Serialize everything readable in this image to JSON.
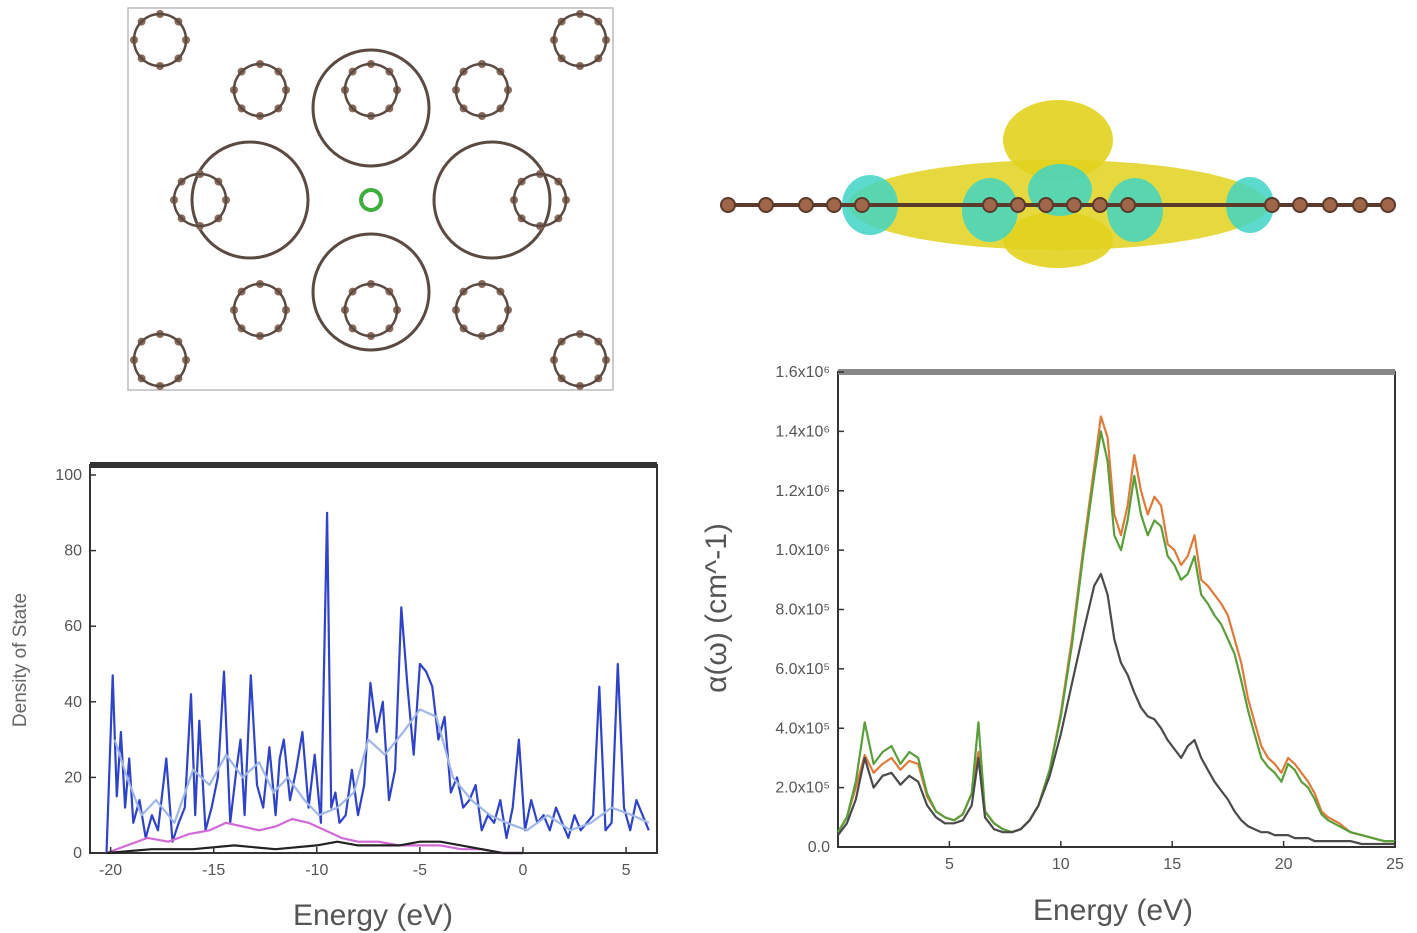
{
  "colors": {
    "bond": "#5a4a42",
    "atom": "#8a6a5a",
    "dopant": "#3fae3f",
    "charge_yellow": "#e2d21e",
    "charge_cyan": "#3fd3c4",
    "dos_blue": "#2f43c9",
    "dos_light": "#9fb7e8",
    "dos_magenta": "#d06ad6",
    "abs_orange": "#e07a3a",
    "abs_green": "#5a9e3a",
    "abs_gray": "#4a4a4a"
  },
  "icons": [
    "atomic-lattice-structure",
    "charge-density-side-view"
  ],
  "chart_data": [
    {
      "type": "line",
      "xlabel": "Energy (eV)",
      "ylabel": "Density of State",
      "xlim": [
        -21,
        6.5
      ],
      "ylim": [
        0,
        100
      ],
      "x_ticks": [
        -20,
        -15,
        -10,
        -5,
        0,
        5
      ],
      "x_tick_labels": [
        "-20",
        "-15",
        "-10",
        "-5",
        "0",
        "5"
      ],
      "y_ticks": [
        0,
        20,
        40,
        60,
        80,
        100
      ],
      "y_tick_labels": [
        "0",
        "20",
        "40",
        "60",
        "80",
        "100"
      ],
      "series": [
        {
          "color": "#2f43c9",
          "x": [
            -20.2,
            -19.9,
            -19.7,
            -19.5,
            -19.3,
            -19.1,
            -18.9,
            -18.6,
            -18.3,
            -18.0,
            -17.7,
            -17.3,
            -17.0,
            -16.7,
            -16.4,
            -16.1,
            -15.9,
            -15.7,
            -15.4,
            -15.1,
            -14.8,
            -14.5,
            -14.2,
            -13.9,
            -13.7,
            -13.5,
            -13.2,
            -12.9,
            -12.6,
            -12.3,
            -12.0,
            -11.8,
            -11.6,
            -11.3,
            -11.0,
            -10.7,
            -10.4,
            -10.1,
            -9.8,
            -9.5,
            -9.3,
            -9.1,
            -8.9,
            -8.6,
            -8.3,
            -8.0,
            -7.7,
            -7.4,
            -7.1,
            -6.8,
            -6.5,
            -6.2,
            -5.9,
            -5.6,
            -5.3,
            -5.0,
            -4.7,
            -4.4,
            -4.1,
            -3.8,
            -3.5,
            -3.2,
            -2.9,
            -2.6,
            -2.3,
            -2.0,
            -1.7,
            -1.4,
            -1.1,
            -0.8,
            -0.5,
            -0.2,
            0.1,
            0.4,
            0.7,
            1.0,
            1.3,
            1.6,
            1.9,
            2.2,
            2.5,
            2.8,
            3.1,
            3.4,
            3.7,
            4.0,
            4.3,
            4.6,
            4.9,
            5.2,
            5.5,
            5.8,
            6.1
          ],
          "y": [
            0,
            47,
            15,
            32,
            12,
            25,
            8,
            14,
            4,
            10,
            6,
            25,
            3,
            8,
            12,
            42,
            10,
            35,
            6,
            12,
            20,
            48,
            8,
            22,
            30,
            10,
            47,
            18,
            12,
            28,
            10,
            25,
            30,
            14,
            22,
            32,
            12,
            26,
            8,
            90,
            12,
            16,
            8,
            10,
            22,
            10,
            18,
            45,
            32,
            40,
            14,
            22,
            65,
            44,
            26,
            50,
            48,
            44,
            30,
            36,
            16,
            20,
            12,
            14,
            18,
            6,
            10,
            8,
            14,
            4,
            12,
            30,
            6,
            14,
            8,
            10,
            6,
            12,
            8,
            4,
            10,
            6,
            8,
            10,
            44,
            6,
            8,
            50,
            12,
            6,
            14,
            10,
            6
          ]
        },
        {
          "color": "#9fb7e8",
          "x": [
            -19.8,
            -19.2,
            -18.5,
            -17.8,
            -16.9,
            -16.0,
            -15.2,
            -14.4,
            -13.6,
            -12.8,
            -12.1,
            -11.4,
            -10.6,
            -9.9,
            -9.0,
            -8.2,
            -7.5,
            -6.7,
            -5.8,
            -5.0,
            -4.2,
            -3.4,
            -2.5,
            -1.6,
            -0.8,
            0.2,
            1.2,
            2.3,
            3.3,
            4.3,
            5.3,
            6.1
          ],
          "y": [
            30,
            20,
            10,
            14,
            8,
            22,
            18,
            26,
            20,
            24,
            16,
            20,
            14,
            10,
            12,
            16,
            30,
            26,
            32,
            38,
            36,
            20,
            14,
            10,
            8,
            6,
            10,
            6,
            8,
            12,
            10,
            8
          ]
        },
        {
          "color": "#d06ad6",
          "x": [
            -20.2,
            -19.2,
            -18.2,
            -17.2,
            -16.2,
            -15.2,
            -14.4,
            -13.6,
            -12.8,
            -12.0,
            -11.2,
            -10.4,
            -9.6,
            -8.8,
            -8.0,
            -7.0,
            -6.0,
            -5.0,
            -4.0,
            -3.0,
            -2.0,
            -1.0,
            0.0
          ],
          "y": [
            0,
            2,
            4,
            3,
            5,
            6,
            8,
            7,
            6,
            7,
            9,
            8,
            6,
            4,
            3,
            3,
            2,
            2,
            2,
            1,
            1,
            0,
            0
          ]
        },
        {
          "color": "#222222",
          "x": [
            -20.2,
            -18.0,
            -16.0,
            -14.0,
            -12.0,
            -10.0,
            -9.0,
            -8.0,
            -7.0,
            -6.0,
            -5.0,
            -4.0,
            -3.0,
            -2.0,
            -1.0,
            0.0
          ],
          "y": [
            0,
            1,
            1,
            2,
            1,
            2,
            3,
            2,
            2,
            2,
            3,
            3,
            2,
            1,
            0,
            0
          ]
        }
      ]
    },
    {
      "type": "line",
      "xlabel": "Energy (eV)",
      "ylabel": "α(ω) (cm^-1)",
      "xlim": [
        0,
        25
      ],
      "ylim": [
        0,
        1.6
      ],
      "x_ticks": [
        5,
        10,
        15,
        20,
        25
      ],
      "x_tick_labels": [
        "5",
        "10",
        "15",
        "20",
        "25"
      ],
      "y_ticks": [
        0,
        0.2,
        0.4,
        0.6,
        0.8,
        1.0,
        1.2,
        1.4,
        1.6
      ],
      "y_tick_labels": [
        "0.0",
        "2.0x10⁵",
        "4.0x10⁵",
        "6.0x10⁵",
        "8.0x10⁵",
        "1.0x10⁶",
        "1.2x10⁶",
        "1.4x10⁶",
        "1.6x10⁶"
      ],
      "series": [
        {
          "color": "#e07a3a",
          "x": [
            0,
            0.4,
            0.8,
            1.2,
            1.6,
            2.0,
            2.4,
            2.8,
            3.2,
            3.6,
            4.0,
            4.4,
            4.8,
            5.2,
            5.6,
            6.0,
            6.3,
            6.6,
            7.0,
            7.4,
            7.8,
            8.2,
            8.6,
            9.0,
            9.5,
            10.0,
            10.5,
            11.0,
            11.5,
            11.8,
            12.1,
            12.4,
            12.7,
            13.0,
            13.3,
            13.6,
            13.9,
            14.2,
            14.5,
            14.8,
            15.1,
            15.4,
            15.7,
            16.0,
            16.3,
            16.6,
            16.9,
            17.2,
            17.5,
            17.8,
            18.1,
            18.4,
            18.7,
            19.0,
            19.3,
            19.6,
            19.9,
            20.2,
            20.5,
            20.8,
            21.1,
            21.4,
            21.7,
            22.0,
            22.5,
            23.0,
            23.5,
            24.0,
            24.5,
            25.0
          ],
          "y": [
            0.05,
            0.1,
            0.2,
            0.31,
            0.25,
            0.28,
            0.3,
            0.26,
            0.29,
            0.28,
            0.17,
            0.12,
            0.1,
            0.09,
            0.11,
            0.18,
            0.32,
            0.12,
            0.08,
            0.06,
            0.05,
            0.06,
            0.09,
            0.14,
            0.26,
            0.45,
            0.7,
            1.0,
            1.28,
            1.45,
            1.38,
            1.12,
            1.05,
            1.15,
            1.32,
            1.2,
            1.12,
            1.18,
            1.15,
            1.02,
            1.0,
            0.95,
            0.98,
            1.05,
            0.9,
            0.88,
            0.85,
            0.82,
            0.78,
            0.7,
            0.62,
            0.5,
            0.42,
            0.34,
            0.3,
            0.28,
            0.25,
            0.3,
            0.28,
            0.25,
            0.22,
            0.18,
            0.12,
            0.1,
            0.08,
            0.05,
            0.04,
            0.03,
            0.02,
            0.02
          ]
        },
        {
          "color": "#5a9e3a",
          "x": [
            0,
            0.4,
            0.8,
            1.2,
            1.6,
            2.0,
            2.4,
            2.8,
            3.2,
            3.6,
            4.0,
            4.4,
            4.8,
            5.2,
            5.6,
            6.0,
            6.3,
            6.6,
            7.0,
            7.4,
            7.8,
            8.2,
            8.6,
            9.0,
            9.5,
            10.0,
            10.5,
            11.0,
            11.5,
            11.8,
            12.1,
            12.4,
            12.7,
            13.0,
            13.3,
            13.6,
            13.9,
            14.2,
            14.5,
            14.8,
            15.1,
            15.4,
            15.7,
            16.0,
            16.3,
            16.6,
            16.9,
            17.2,
            17.5,
            17.8,
            18.1,
            18.4,
            18.7,
            19.0,
            19.3,
            19.6,
            19.9,
            20.2,
            20.5,
            20.8,
            21.1,
            21.4,
            21.7,
            22.0,
            22.5,
            23.0,
            23.5,
            24.0,
            24.5,
            25.0
          ],
          "y": [
            0.05,
            0.1,
            0.22,
            0.42,
            0.28,
            0.32,
            0.34,
            0.28,
            0.32,
            0.3,
            0.18,
            0.12,
            0.1,
            0.09,
            0.11,
            0.18,
            0.42,
            0.12,
            0.08,
            0.06,
            0.05,
            0.06,
            0.09,
            0.14,
            0.26,
            0.44,
            0.68,
            0.98,
            1.25,
            1.4,
            1.3,
            1.05,
            1.0,
            1.1,
            1.25,
            1.12,
            1.05,
            1.1,
            1.08,
            0.98,
            0.95,
            0.9,
            0.92,
            0.98,
            0.85,
            0.82,
            0.78,
            0.75,
            0.7,
            0.65,
            0.56,
            0.46,
            0.38,
            0.3,
            0.27,
            0.25,
            0.22,
            0.28,
            0.26,
            0.22,
            0.2,
            0.16,
            0.11,
            0.09,
            0.07,
            0.05,
            0.04,
            0.03,
            0.02,
            0.02
          ]
        },
        {
          "color": "#4a4a4a",
          "x": [
            0,
            0.4,
            0.8,
            1.2,
            1.6,
            2.0,
            2.4,
            2.8,
            3.2,
            3.6,
            4.0,
            4.4,
            4.8,
            5.2,
            5.6,
            6.0,
            6.3,
            6.6,
            7.0,
            7.4,
            7.8,
            8.2,
            8.6,
            9.0,
            9.5,
            10.0,
            10.5,
            11.0,
            11.5,
            11.8,
            12.1,
            12.4,
            12.7,
            13.0,
            13.3,
            13.6,
            13.9,
            14.2,
            14.5,
            14.8,
            15.1,
            15.4,
            15.7,
            16.0,
            16.3,
            16.6,
            16.9,
            17.2,
            17.5,
            17.8,
            18.1,
            18.4,
            18.7,
            19.0,
            19.3,
            19.6,
            19.9,
            20.2,
            20.5,
            20.8,
            21.1,
            21.4,
            21.7,
            22.0,
            22.5,
            23.0,
            23.5,
            24.0,
            24.5,
            25.0
          ],
          "y": [
            0.04,
            0.08,
            0.16,
            0.3,
            0.2,
            0.24,
            0.25,
            0.21,
            0.24,
            0.22,
            0.14,
            0.1,
            0.08,
            0.08,
            0.09,
            0.14,
            0.3,
            0.1,
            0.06,
            0.05,
            0.05,
            0.06,
            0.09,
            0.14,
            0.24,
            0.38,
            0.55,
            0.72,
            0.88,
            0.92,
            0.85,
            0.7,
            0.62,
            0.58,
            0.52,
            0.47,
            0.44,
            0.43,
            0.4,
            0.36,
            0.33,
            0.3,
            0.34,
            0.36,
            0.3,
            0.26,
            0.22,
            0.19,
            0.16,
            0.12,
            0.09,
            0.07,
            0.06,
            0.05,
            0.05,
            0.04,
            0.04,
            0.04,
            0.03,
            0.03,
            0.03,
            0.02,
            0.02,
            0.02,
            0.02,
            0.02,
            0.01,
            0.01,
            0.01,
            0.01
          ]
        }
      ]
    }
  ]
}
